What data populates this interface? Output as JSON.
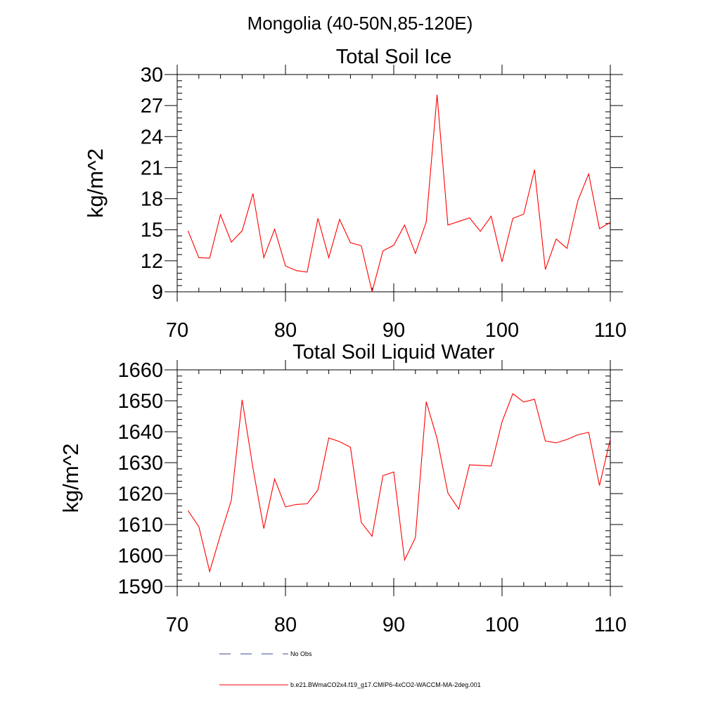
{
  "figure": {
    "title": "Mongolia (40-50N,85-120E)"
  },
  "chart_data": [
    {
      "type": "line",
      "title": "Total Soil Ice",
      "xlabel": "",
      "ylabel": "kg/m^2",
      "xlim": [
        70,
        110
      ],
      "ylim": [
        9,
        30
      ],
      "xticks": [
        70,
        80,
        90,
        100,
        110
      ],
      "yticks": [
        9,
        12,
        15,
        18,
        21,
        24,
        27,
        30
      ],
      "x_minor_step": 2,
      "y_minor_step": 0.6,
      "grid": false,
      "series": [
        {
          "name": "b.e21.BWmaCO2x4.f19_g17.CMIP6-4xCO2-WACCM-MA-2deg.001",
          "color": "#ff0000",
          "x": [
            71,
            72,
            73,
            74,
            75,
            76,
            77,
            78,
            79,
            80,
            81,
            82,
            83,
            84,
            85,
            86,
            87,
            88,
            89,
            90,
            91,
            92,
            93,
            94,
            95,
            96,
            97,
            98,
            99,
            100,
            101,
            102,
            103,
            104,
            105,
            106,
            107,
            108,
            109,
            110
          ],
          "values": [
            14.9,
            12.3,
            12.25,
            16.45,
            13.8,
            14.9,
            18.5,
            12.3,
            15.05,
            11.5,
            11.05,
            10.9,
            16.1,
            12.3,
            16.0,
            13.75,
            13.45,
            9.0,
            12.95,
            13.5,
            15.45,
            12.7,
            15.75,
            28.05,
            15.45,
            15.8,
            16.15,
            14.85,
            16.3,
            11.9,
            16.1,
            16.5,
            20.8,
            11.15,
            14.1,
            13.2,
            17.8,
            20.4,
            15.1,
            15.7
          ]
        }
      ]
    },
    {
      "type": "line",
      "title": "Total Soil Liquid Water",
      "xlabel": "",
      "ylabel": "kg/m^2",
      "xlim": [
        70,
        110
      ],
      "ylim": [
        1590,
        1660
      ],
      "xticks": [
        70,
        80,
        90,
        100,
        110
      ],
      "yticks": [
        1590,
        1600,
        1610,
        1620,
        1630,
        1640,
        1650,
        1660
      ],
      "x_minor_step": 2,
      "y_minor_step": 2,
      "grid": false,
      "series": [
        {
          "name": "b.e21.BWmaCO2x4.f19_g17.CMIP6-4xCO2-WACCM-MA-2deg.001",
          "color": "#ff0000",
          "x": [
            71,
            72,
            73,
            74,
            75,
            76,
            77,
            78,
            79,
            80,
            81,
            82,
            83,
            84,
            85,
            86,
            87,
            88,
            89,
            90,
            91,
            92,
            93,
            94,
            95,
            96,
            97,
            98,
            99,
            100,
            101,
            102,
            103,
            104,
            105,
            106,
            107,
            108,
            109,
            110
          ],
          "values": [
            1614.5,
            1609.3,
            1594.8,
            1606.7,
            1617.8,
            1650.3,
            1628.2,
            1608.7,
            1624.7,
            1615.7,
            1616.5,
            1616.7,
            1621.2,
            1638.0,
            1636.8,
            1635.0,
            1610.7,
            1606.2,
            1625.8,
            1627.0,
            1598.5,
            1605.8,
            1649.7,
            1637.8,
            1620.2,
            1615.0,
            1629.3,
            1629.1,
            1628.9,
            1643.2,
            1652.3,
            1649.6,
            1650.5,
            1637.0,
            1636.4,
            1637.5,
            1639.0,
            1639.8,
            1622.6,
            1637.6
          ]
        }
      ]
    }
  ],
  "legend": {
    "placement": "bottom-left",
    "items": [
      {
        "label": "No Obs",
        "color": "#3a4a8a",
        "style": "dashed"
      },
      {
        "label": "b.e21.BWmaCO2x4.f19_g17.CMIP6-4xCO2-WACCM-MA-2deg.001",
        "color": "#ff0000",
        "style": "solid"
      }
    ]
  }
}
